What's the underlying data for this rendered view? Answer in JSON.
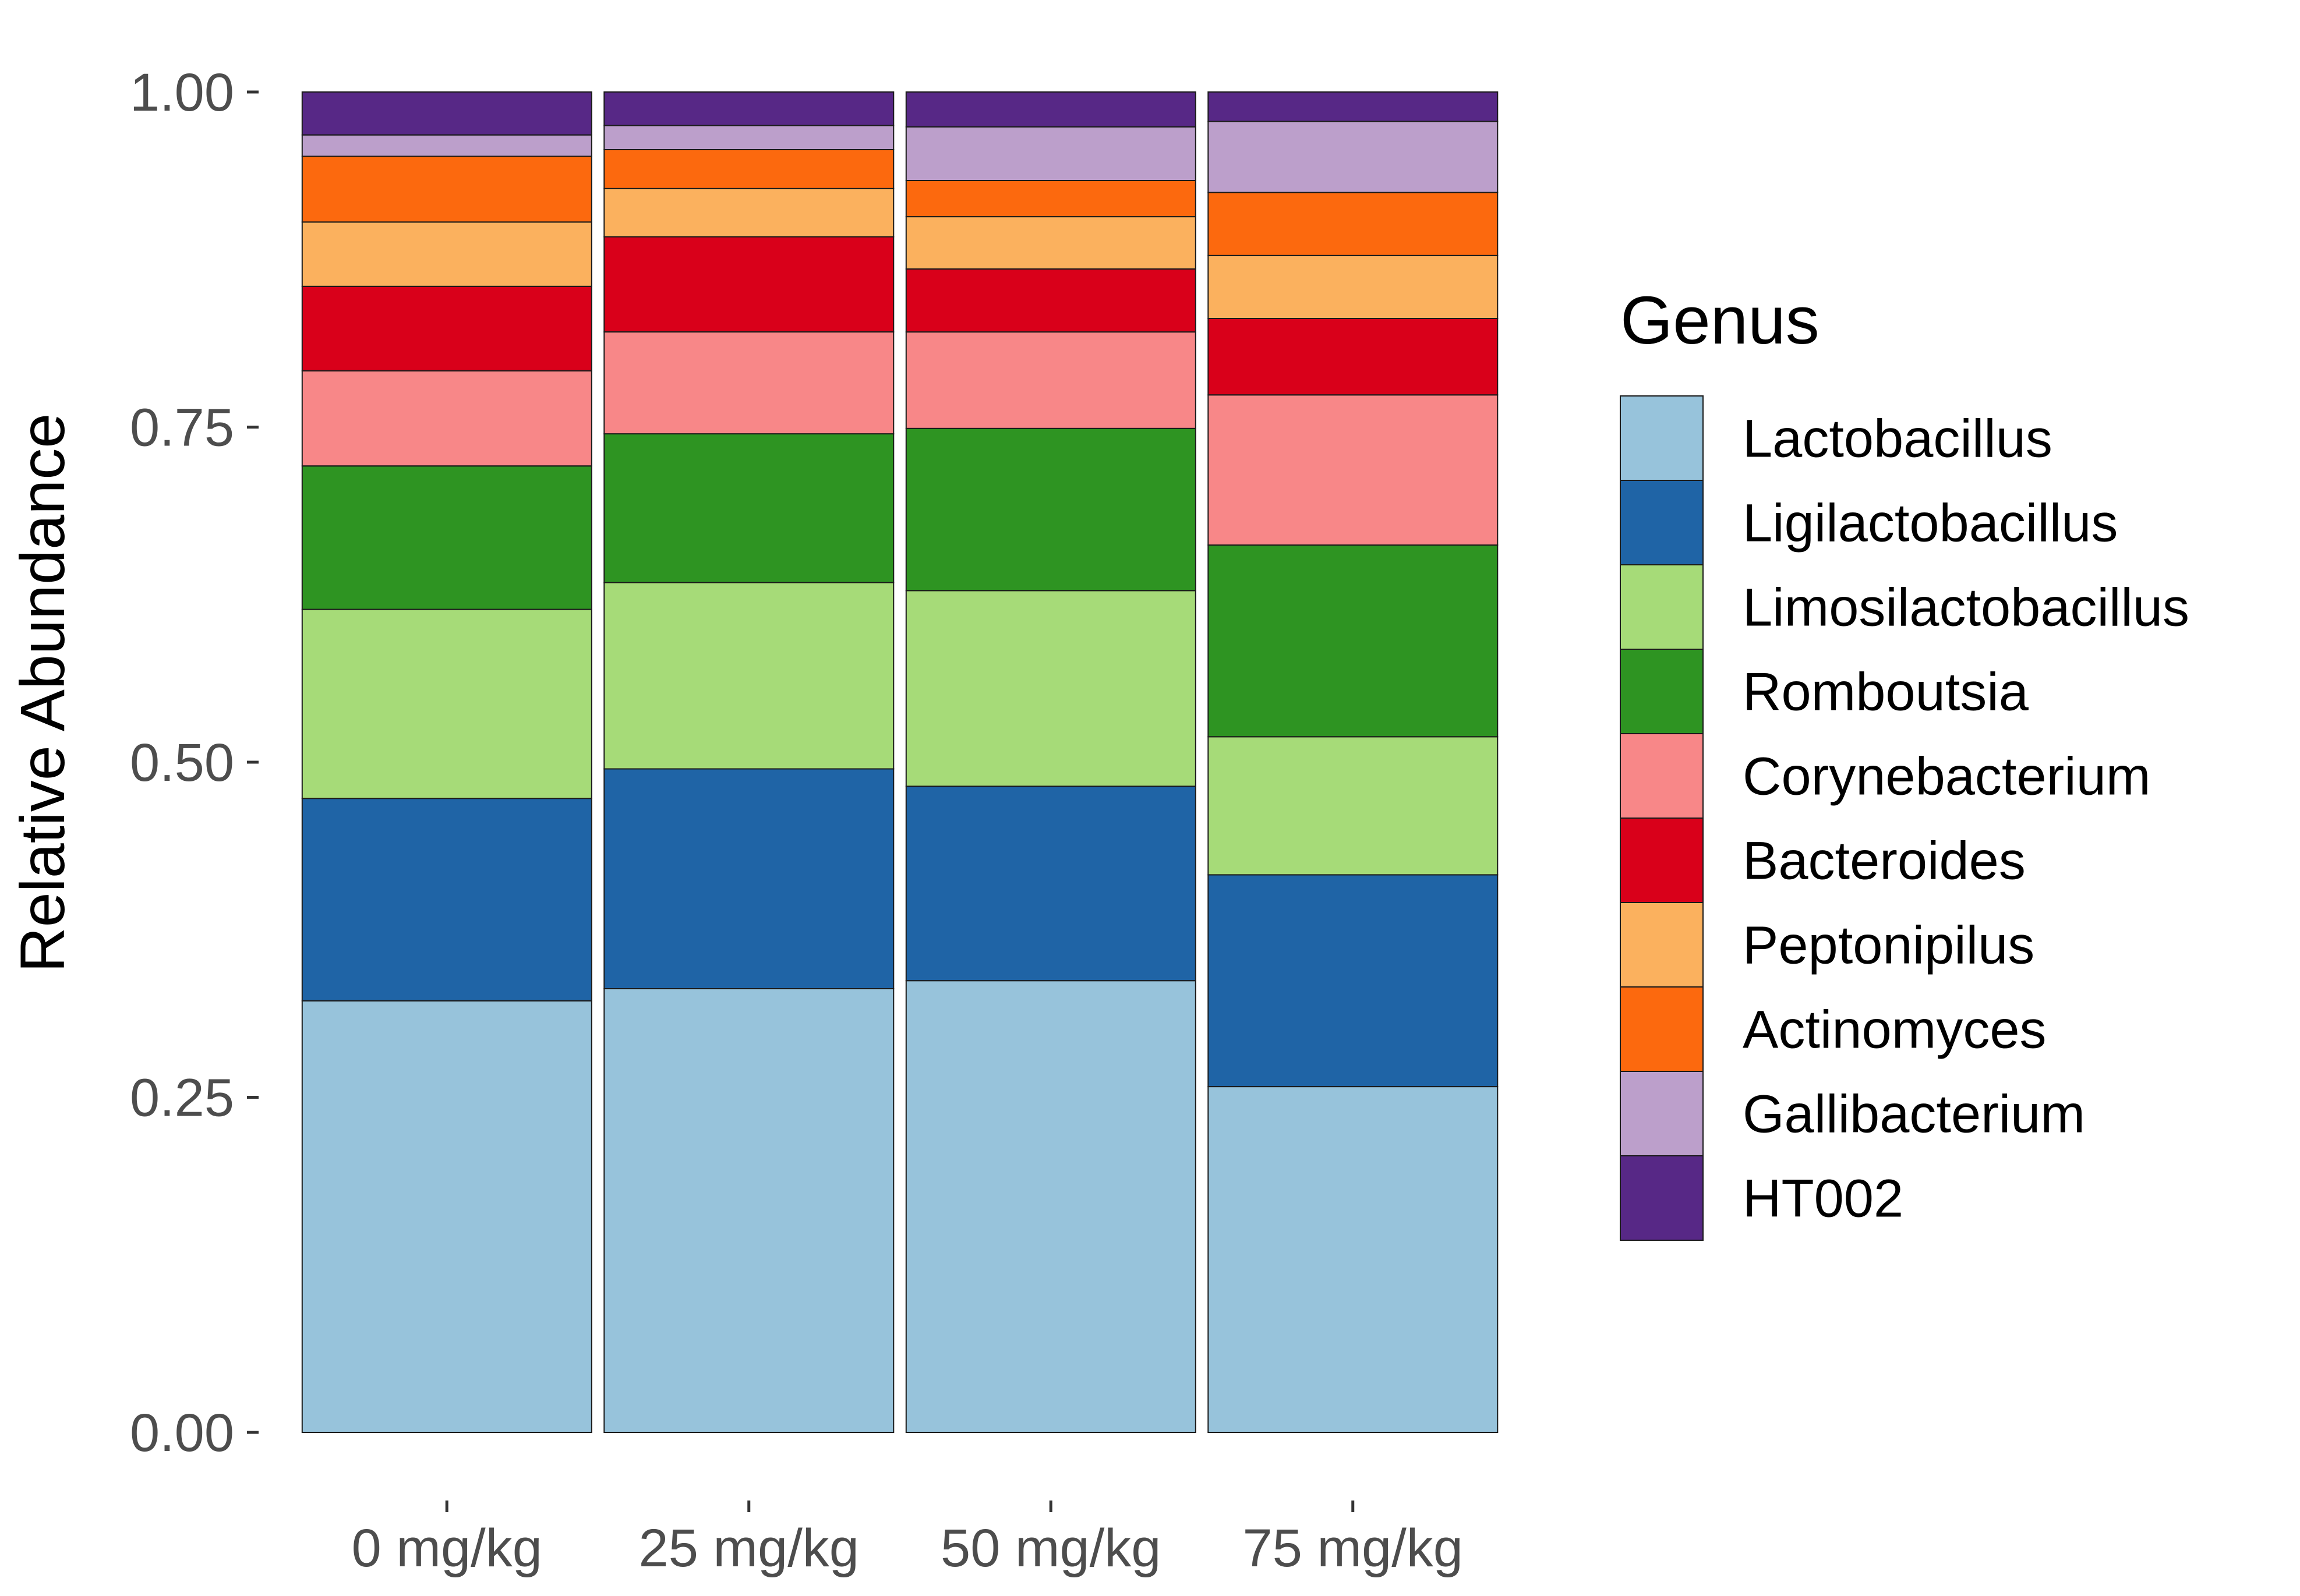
{
  "chart_data": {
    "type": "bar",
    "stacked": true,
    "categories": [
      "0 mg/kg",
      "25 mg/kg",
      "50 mg/kg",
      "75 mg/kg"
    ],
    "ylabel": "Relative Abundance",
    "xlabel": "",
    "ylim": [
      0,
      1
    ],
    "yticks": [
      "0.00",
      "0.25",
      "0.50",
      "0.75",
      "1.00"
    ],
    "ytick_values": [
      0,
      0.25,
      0.5,
      0.75,
      1.0
    ],
    "grid": false,
    "legend": {
      "title": "Genus",
      "position": "right"
    },
    "series": [
      {
        "name": "Lactobacillus",
        "color": "#97C3DB",
        "values": [
          0.322,
          0.331,
          0.337,
          0.258
        ]
      },
      {
        "name": "Ligilactobacillus",
        "color": "#1F64A6",
        "values": [
          0.151,
          0.164,
          0.145,
          0.158
        ]
      },
      {
        "name": "Limosilactobacillus",
        "color": "#A6DB78",
        "values": [
          0.141,
          0.139,
          0.146,
          0.103
        ]
      },
      {
        "name": "Romboutsia",
        "color": "#2E9422",
        "values": [
          0.107,
          0.111,
          0.121,
          0.143
        ]
      },
      {
        "name": "Corynebacterium",
        "color": "#F88788",
        "values": [
          0.071,
          0.076,
          0.072,
          0.112
        ]
      },
      {
        "name": "Bacteroides",
        "color": "#D9001A",
        "values": [
          0.063,
          0.071,
          0.047,
          0.057
        ]
      },
      {
        "name": "Peptonipilus",
        "color": "#FBB15E",
        "values": [
          0.048,
          0.036,
          0.039,
          0.047
        ]
      },
      {
        "name": "Actinomyces",
        "color": "#FC690E",
        "values": [
          0.049,
          0.029,
          0.027,
          0.047
        ]
      },
      {
        "name": "Gallibacterium",
        "color": "#BC9FCB",
        "values": [
          0.016,
          0.018,
          0.04,
          0.053
        ]
      },
      {
        "name": "HT002",
        "color": "#572886",
        "values": [
          0.032,
          0.025,
          0.026,
          0.022
        ]
      }
    ]
  }
}
